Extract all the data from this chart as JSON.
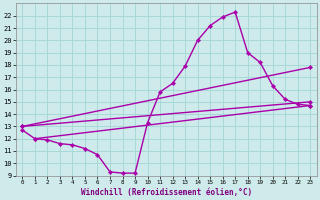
{
  "xlabel": "Windchill (Refroidissement éolien,°C)",
  "xlim": [
    -0.5,
    23.5
  ],
  "ylim": [
    9,
    23
  ],
  "xticks": [
    0,
    1,
    2,
    3,
    4,
    5,
    6,
    7,
    8,
    9,
    10,
    11,
    12,
    13,
    14,
    15,
    16,
    17,
    18,
    19,
    20,
    21,
    22,
    23
  ],
  "yticks": [
    9,
    10,
    11,
    12,
    13,
    14,
    15,
    16,
    17,
    18,
    19,
    20,
    21,
    22
  ],
  "grid_color": "#a8d8d8",
  "bg_color": "#ceeaea",
  "line_color": "#aa00aa",
  "line_width": 1.0,
  "marker": "D",
  "marker_size": 2.2,
  "lines": [
    {
      "x": [
        0,
        1,
        2,
        3,
        4,
        5,
        6,
        7,
        8,
        9,
        10,
        11,
        12,
        13,
        14,
        15,
        16,
        17,
        18,
        19,
        20,
        21,
        22,
        23
      ],
      "y": [
        12.7,
        12.0,
        11.9,
        11.6,
        11.5,
        11.2,
        10.7,
        9.3,
        9.2,
        9.2,
        13.3,
        15.8,
        16.5,
        17.9,
        20.0,
        21.2,
        21.9,
        22.3,
        19.0,
        18.2,
        16.3,
        15.2,
        14.8,
        14.7
      ]
    },
    {
      "x": [
        0,
        23
      ],
      "y": [
        13.0,
        17.8
      ]
    },
    {
      "x": [
        0,
        23
      ],
      "y": [
        13.0,
        15.0
      ]
    },
    {
      "x": [
        1,
        23
      ],
      "y": [
        12.0,
        14.7
      ]
    }
  ],
  "xlabel_color": "#800080",
  "xlabel_fontsize": 5.5,
  "tick_fontsize": 5.0,
  "tick_fontsize_x": 4.2
}
